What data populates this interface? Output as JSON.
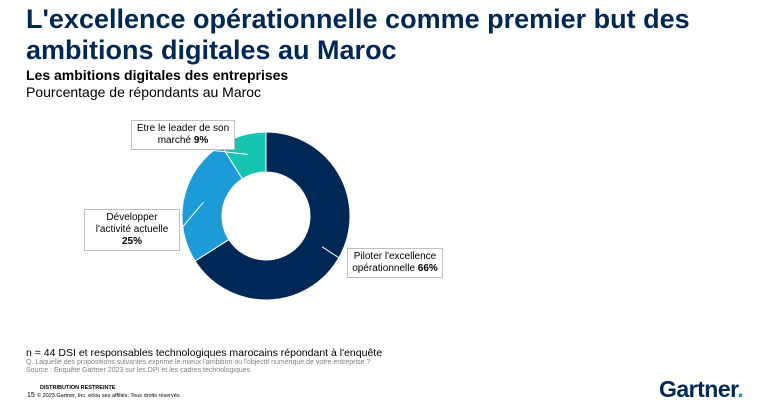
{
  "title": "L'excellence opérationnelle comme premier but des ambitions digitales au Maroc",
  "colors": {
    "title": "#002856",
    "navy": "#002856",
    "blue": "#1c9bd8",
    "teal": "#17c4b2"
  },
  "chart_data": {
    "type": "pie",
    "variant": "donut",
    "title": "Les ambitions digitales des entreprises",
    "subtitle": "Pourcentage de répondants au Maroc",
    "categories": [
      "Piloter l'excellence opérationnelle",
      "Développer l'activité actuelle",
      "Etre le leader de son marché"
    ],
    "values": [
      66,
      25,
      9
    ],
    "value_labels": [
      "66%",
      "25%",
      "9%"
    ],
    "colors": [
      "#002856",
      "#1c9bd8",
      "#17c4b2"
    ]
  },
  "callouts": [
    {
      "text": "Piloter l'excellence opérationnelle",
      "value": "66%"
    },
    {
      "text": "Développer l'activité actuelle",
      "value": "25%"
    },
    {
      "text": "Etre le leader de son marché",
      "value": "9%"
    }
  ],
  "footer": {
    "n_note": "n = 44 DSI et responsables technologiques marocains répondant à l'enquête",
    "question": "Q. Laquelle des propositions suivantes exprime le mieux l'ambition ou l'objectif numérique de votre entreprise ?",
    "source": "Source : Enquête Gartner 2023 sur les DPI et les cadres technologiques",
    "distribution": "DISTRIBUTION RESTREINTE",
    "page": "15",
    "copyright": "© 2023 Gartner, Inc. et/ou ses affiliés. Tous droits réservés.",
    "logo": "Gartner",
    "logo_dot": "."
  }
}
